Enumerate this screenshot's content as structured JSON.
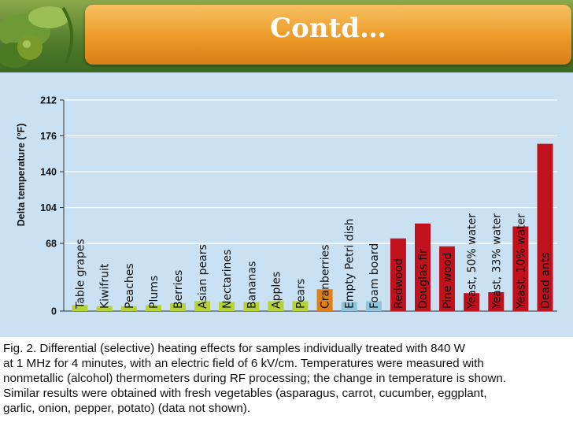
{
  "header": {
    "title": "Contd…"
  },
  "chart_data": {
    "type": "bar",
    "ylabel": "Delta temperature (°F)",
    "xlabel": "",
    "ylim": [
      0,
      212
    ],
    "yticks": [
      0,
      68,
      104,
      140,
      176,
      212
    ],
    "categories": [
      "Table grapes",
      "Kiwifruit",
      "Peaches",
      "Plums",
      "Berries",
      "Asian pears",
      "Nectarines",
      "Bananas",
      "Apples",
      "Pears",
      "Cranberries",
      "Empty Petri dish",
      "Foam board",
      "Redwood",
      "Douglas fir",
      "Pine wood",
      "Yeast, 50% water",
      "Yeast, 33% water",
      "Yeast, 10% water",
      "Dead ants"
    ],
    "values": [
      6,
      5,
      5,
      6,
      8,
      10,
      9,
      9,
      10,
      10,
      22,
      9,
      10,
      73,
      88,
      65,
      18,
      19,
      85,
      168
    ],
    "groups": [
      "fruit",
      "fruit",
      "fruit",
      "fruit",
      "fruit",
      "fruit",
      "fruit",
      "fruit",
      "fruit",
      "fruit",
      "cranberry",
      "control",
      "control",
      "wood",
      "wood",
      "wood",
      "insect",
      "insect",
      "insect",
      "insect"
    ],
    "colors": {
      "fruit": "#b5d334",
      "cranberry": "#e07e12",
      "control": "#8fc6de",
      "wood": "#c0111c",
      "insect": "#c0111c"
    }
  },
  "caption": {
    "lines": [
      "Fig. 2.  Differential (selective) heating effects for samples individually treated with 840 W",
      "at 1 MHz for 4 minutes, with an electric field of 6 kV/cm. Temperatures were measured with",
      "nonmetallic (alcohol) thermometers during RF processing; the change in temperature is shown.",
      "Similar results were obtained with fresh vegetables (asparagus, carrot, cucumber, eggplant,",
      "garlic, onion, pepper, potato) (data not shown)."
    ]
  }
}
